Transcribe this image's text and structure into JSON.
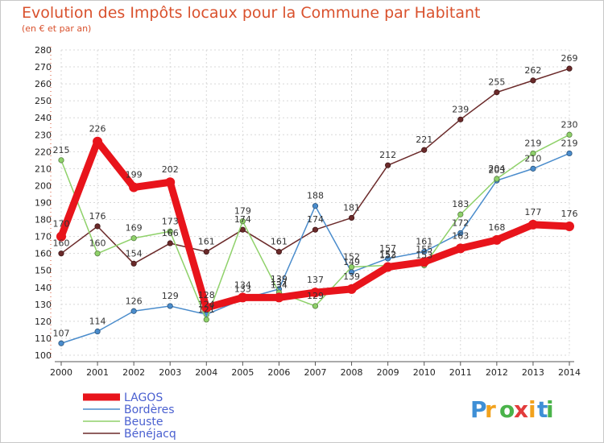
{
  "title": "Evolution des Impôts locaux pour la Commune par Habitant",
  "subtitle": "(en € et par an)",
  "logo": {
    "text": "Proxiti",
    "colors": [
      "#3e8fd6",
      "#f2a21d",
      "#4ab34a",
      "#e23b3b",
      "#f2a21d",
      "#3e8fd6",
      "#4ab34a"
    ]
  },
  "chart_data": {
    "type": "line",
    "x": [
      2000,
      2001,
      2002,
      2003,
      2004,
      2005,
      2006,
      2007,
      2008,
      2009,
      2010,
      2011,
      2012,
      2013,
      2014
    ],
    "ylim": [
      100,
      280
    ],
    "yticks": [
      100,
      110,
      120,
      130,
      140,
      150,
      160,
      170,
      180,
      190,
      200,
      210,
      220,
      230,
      240,
      250,
      260,
      270,
      280
    ],
    "grid": true,
    "legend_position": "bottom-left",
    "series": [
      {
        "name": "Bénéjacq",
        "color": "#6b2a2a",
        "labeled": true,
        "values": [
          160,
          176,
          154,
          166,
          161,
          174,
          161,
          174,
          181,
          212,
          221,
          239,
          255,
          262,
          269
        ]
      },
      {
        "name": "Bordères",
        "color": "#4a8ccc",
        "labeled": true,
        "values": [
          107,
          114,
          126,
          129,
          124,
          133,
          139,
          188,
          149,
          157,
          161,
          172,
          203,
          210,
          219
        ]
      },
      {
        "name": "Beuste",
        "color": "#8fd16a",
        "labeled": true,
        "values": [
          215,
          160,
          169,
          173,
          121,
          179,
          137,
          129,
          152,
          153,
          153,
          183,
          204,
          219,
          230
        ]
      },
      {
        "name": "LAGOS",
        "color": "#e8141b",
        "labeled": true,
        "values": [
          170,
          226,
          199,
          202,
          128,
          134,
          134,
          137,
          139,
          152,
          155,
          163,
          168,
          177,
          176
        ]
      }
    ],
    "legend_order": [
      "LAGOS",
      "Bordères",
      "Beuste",
      "Bénéjacq"
    ]
  }
}
